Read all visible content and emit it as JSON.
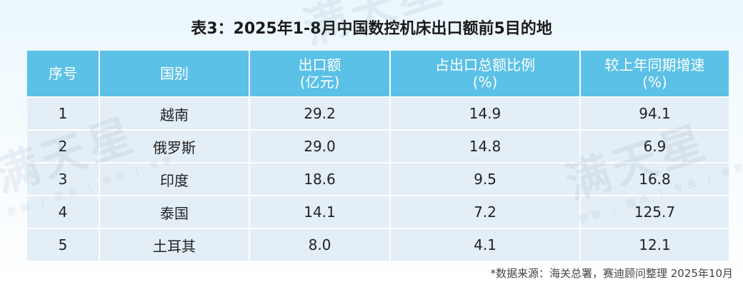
{
  "title": "表3：2025年1-8月中国数控机床出口额前5目的地",
  "table": {
    "headers": [
      {
        "line1": "序号",
        "line2": ""
      },
      {
        "line1": "国别",
        "line2": ""
      },
      {
        "line1": "出口额",
        "line2": "(亿元)"
      },
      {
        "line1": "占出口总额比例",
        "line2": "(%)"
      },
      {
        "line1": "较上年同期增速",
        "line2": "(%)"
      }
    ],
    "rows": [
      {
        "rank": "1",
        "country": "越南",
        "export": "29.2",
        "share": "14.9",
        "growth": "94.1"
      },
      {
        "rank": "2",
        "country": "俄罗斯",
        "export": "29.0",
        "share": "14.8",
        "growth": "6.9"
      },
      {
        "rank": "3",
        "country": "印度",
        "export": "18.6",
        "share": "9.5",
        "growth": "16.8"
      },
      {
        "rank": "4",
        "country": "泰国",
        "export": "14.1",
        "share": "7.2",
        "growth": "125.7"
      },
      {
        "rank": "5",
        "country": "土耳其",
        "export": "8.0",
        "share": "4.1",
        "growth": "12.1"
      }
    ]
  },
  "source": "*数据来源：海关总署，赛迪顾问整理  2025年10月",
  "watermark": {
    "main": "满天星",
    "sub": "数据 | 观点 | 专业 | 专家"
  },
  "colors": {
    "header_bg": "#5bc1e6",
    "cell_bg": "#e3eef6",
    "page_bg": "#eaf7fd"
  }
}
